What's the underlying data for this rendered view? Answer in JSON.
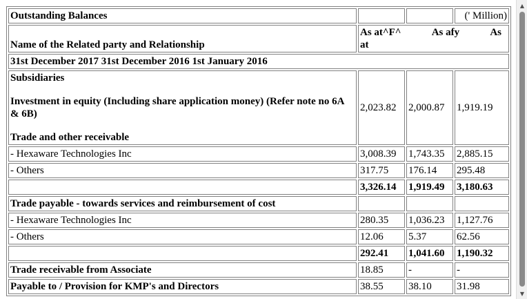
{
  "header": {
    "title": "Outstanding Balances",
    "unit": "(' Million)",
    "row_label": "Name of the Related party and Relationship",
    "col_as_at": "As at^F^",
    "col_at": "at",
    "col_afy": "As afy",
    "col_as": "As",
    "dates_line": "31st December 2017 31st December 2016 1st January 2016"
  },
  "section": {
    "subsidiaries": "Subsidiaries",
    "investment": "Investment in equity (Including share application money) (Refer note no 6A & 6B)",
    "trade_other_receivable": "Trade and other receivable"
  },
  "investment_values": [
    "2,023.82",
    "2,000.87",
    "1,919.19"
  ],
  "receivable_rows": [
    {
      "label": "- Hexaware Technologies Inc",
      "values": [
        "3,008.39",
        "1,743.35",
        "2,885.15"
      ]
    },
    {
      "label": "- Others",
      "values": [
        "317.75",
        "176.14",
        "295.48"
      ]
    }
  ],
  "receivable_total": [
    "3,326.14",
    "1,919.49",
    "3,180.63"
  ],
  "payable_heading": "Trade payable - towards services and reimbursement of cost",
  "payable_rows": [
    {
      "label": "- Hexaware Technologies Inc",
      "values": [
        "280.35",
        "1,036.23",
        "1,127.76"
      ]
    },
    {
      "label": "- Others",
      "values": [
        "12.06",
        "5.37",
        "62.56"
      ]
    }
  ],
  "payable_total": [
    "292.41",
    "1,041.60",
    "1,190.32"
  ],
  "associate_row": {
    "label": "Trade receivable from Associate",
    "values": [
      "18.85",
      "-",
      "-"
    ]
  },
  "kmp_row": {
    "label": "Payable to / Provision for KMP's and Directors",
    "values": [
      "38.55",
      "38.10",
      "31.98"
    ]
  },
  "scrollbar": {
    "up_icon": "▲",
    "down_icon": "▼"
  }
}
